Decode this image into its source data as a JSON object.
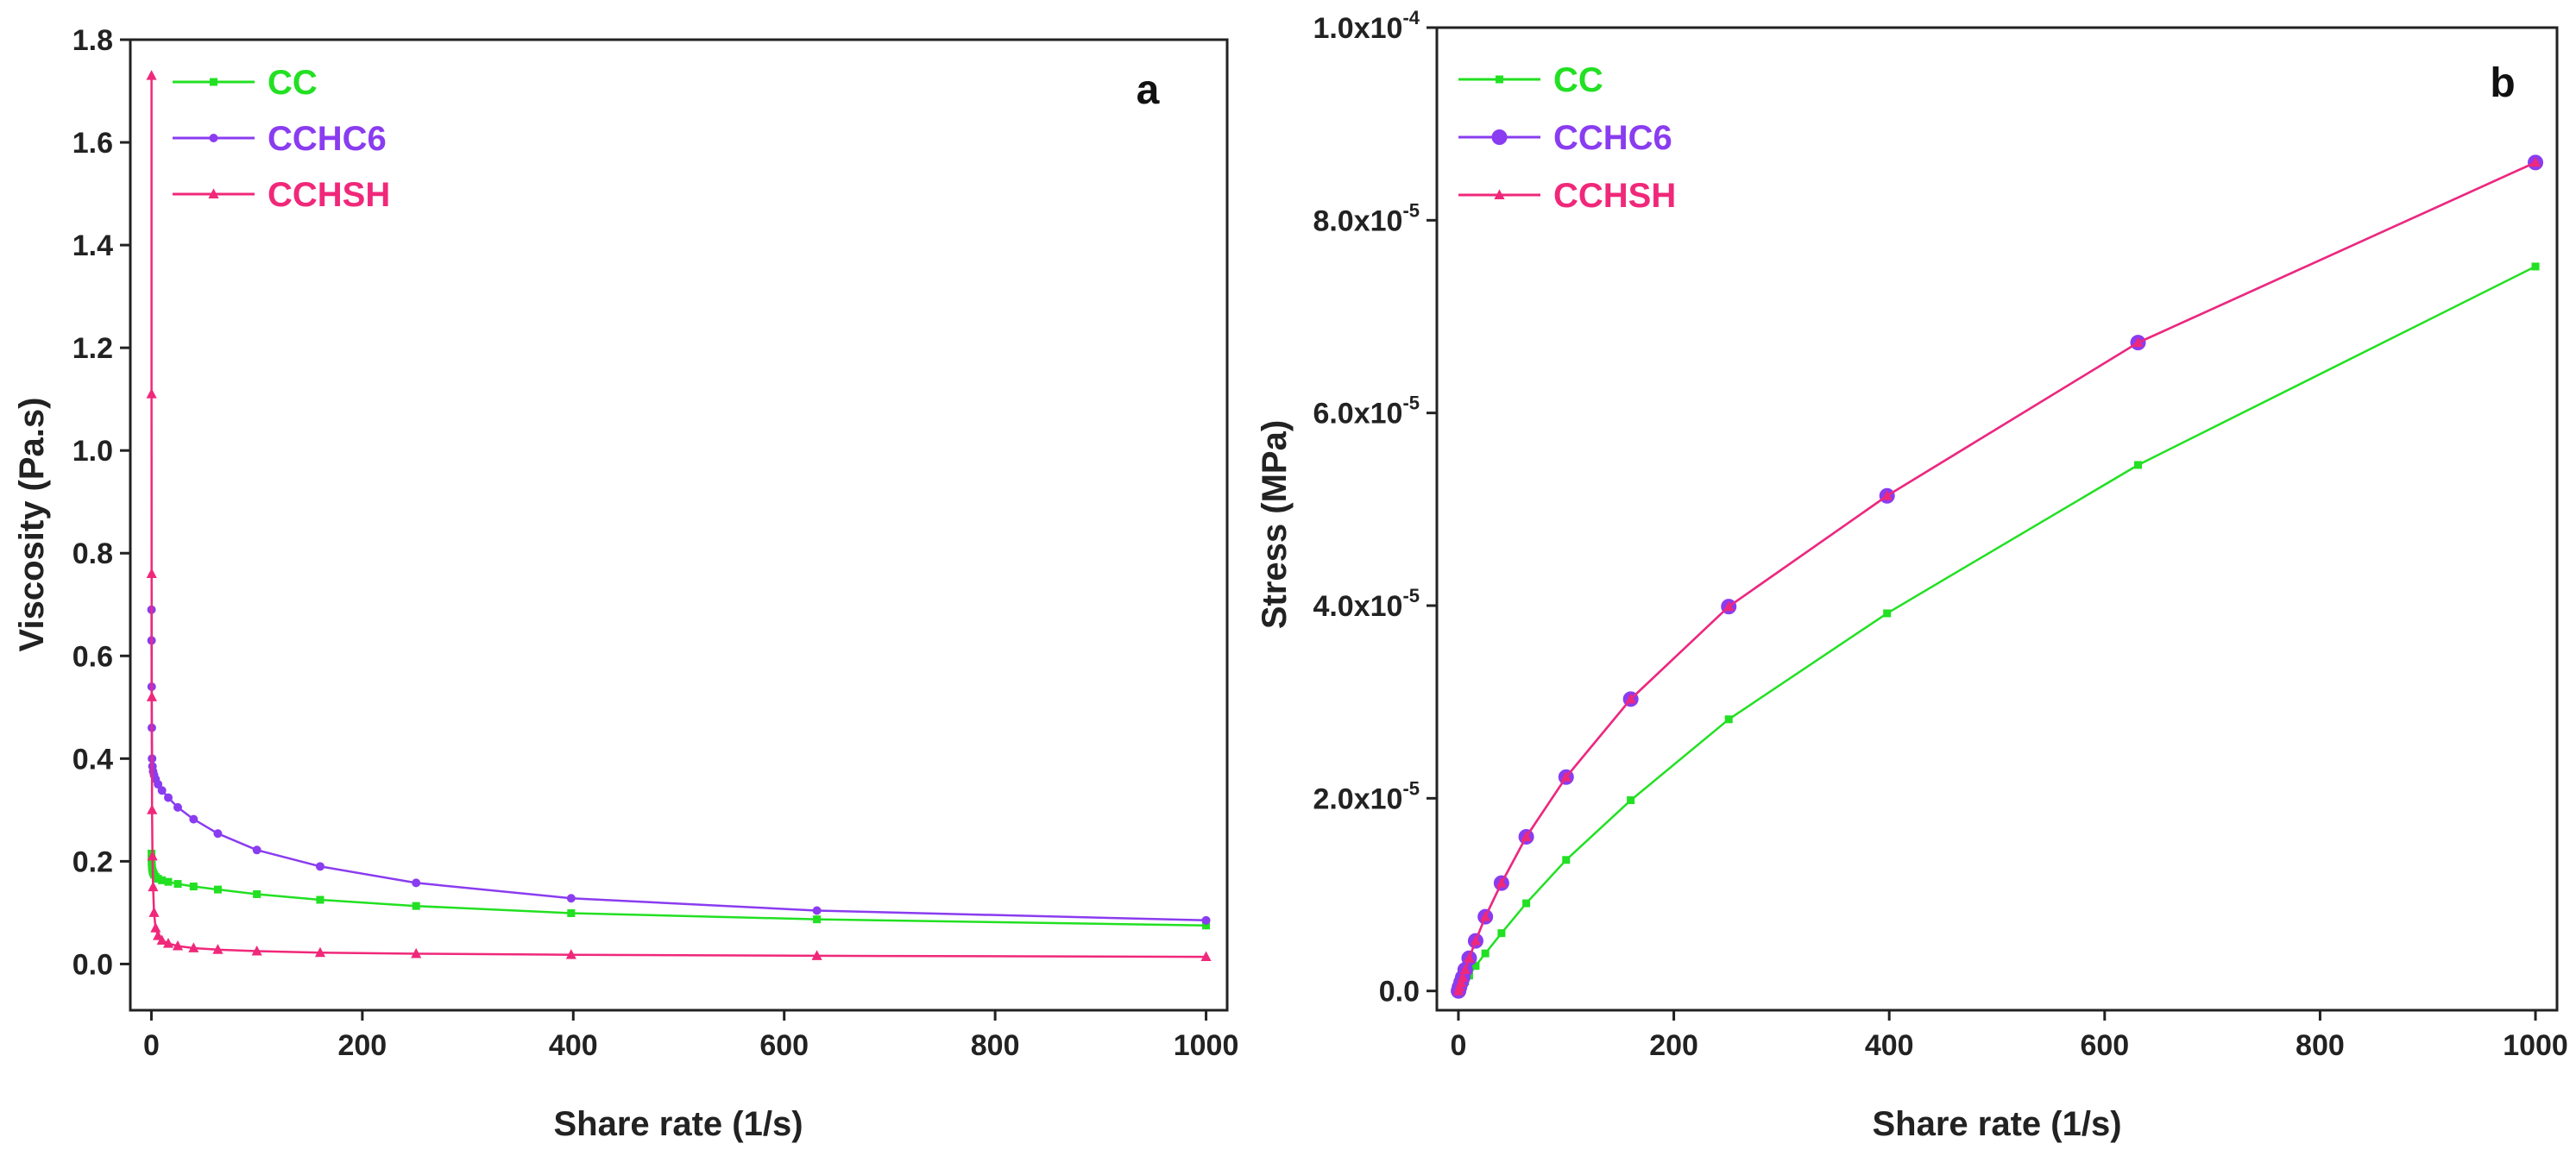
{
  "chart_data": [
    {
      "type": "line",
      "panel_label": "a",
      "title": "",
      "xlabel": "Share rate (1/s)",
      "ylabel": "Viscosity (Pa.s)",
      "xlim": [
        -20,
        1020
      ],
      "ylim": [
        -0.09,
        1.8
      ],
      "xticks": [
        0,
        200,
        400,
        600,
        800,
        1000
      ],
      "xtick_labels": [
        "0",
        "200",
        "400",
        "600",
        "800",
        "1000"
      ],
      "yticks": [
        0,
        0.2,
        0.4,
        0.6,
        0.8,
        1.0,
        1.2,
        1.4,
        1.6,
        1.8
      ],
      "ytick_labels": [
        "0.0",
        "0.2",
        "0.4",
        "0.6",
        "0.8",
        "1.0",
        "1.2",
        "1.4",
        "1.6",
        "1.8"
      ],
      "legend": "top-left",
      "series": [
        {
          "name": "CC",
          "color": "#22e022",
          "marker": "square",
          "x": [
            0.1,
            0.16,
            0.25,
            0.4,
            0.63,
            1,
            1.6,
            2.5,
            4,
            6.3,
            10,
            16,
            25,
            40,
            63,
            100,
            160,
            251,
            398,
            631,
            1000
          ],
          "y": [
            0.215,
            0.205,
            0.198,
            0.192,
            0.187,
            0.182,
            0.178,
            0.174,
            0.17,
            0.166,
            0.163,
            0.16,
            0.156,
            0.151,
            0.145,
            0.136,
            0.125,
            0.113,
            0.099,
            0.087,
            0.075
          ]
        },
        {
          "name": "CCHC6",
          "color": "#8a3cf0",
          "marker": "circle",
          "x": [
            0.1,
            0.16,
            0.25,
            0.4,
            0.63,
            1,
            1.6,
            2.5,
            4,
            6.3,
            10,
            16,
            25,
            40,
            63,
            100,
            160,
            251,
            398,
            631,
            1000
          ],
          "y": [
            0.69,
            0.63,
            0.54,
            0.46,
            0.4,
            0.385,
            0.375,
            0.368,
            0.36,
            0.35,
            0.338,
            0.324,
            0.305,
            0.282,
            0.254,
            0.222,
            0.19,
            0.158,
            0.128,
            0.104,
            0.085
          ]
        },
        {
          "name": "CCHSH",
          "color": "#f0287a",
          "marker": "triangle",
          "x": [
            0.1,
            0.16,
            0.25,
            0.4,
            0.63,
            1,
            1.6,
            2.5,
            4,
            6.3,
            10,
            16,
            25,
            40,
            63,
            100,
            160,
            251,
            398,
            631,
            1000
          ],
          "y": [
            1.73,
            1.11,
            0.76,
            0.52,
            0.3,
            0.21,
            0.15,
            0.1,
            0.07,
            0.055,
            0.046,
            0.04,
            0.035,
            0.031,
            0.028,
            0.025,
            0.022,
            0.02,
            0.018,
            0.016,
            0.014
          ]
        }
      ]
    },
    {
      "type": "line",
      "panel_label": "b",
      "title": "",
      "xlabel": "Share rate (1/s)",
      "ylabel": "Stress (MPa)",
      "xlim": [
        -20,
        1020
      ],
      "ylim": [
        -2e-06,
        0.0001
      ],
      "xticks": [
        0,
        200,
        400,
        600,
        800,
        1000
      ],
      "xtick_labels": [
        "0",
        "200",
        "400",
        "600",
        "800",
        "1000"
      ],
      "yticks": [
        0,
        2e-05,
        4e-05,
        6e-05,
        8e-05,
        0.0001
      ],
      "ytick_labels": [
        {
          "mantissa": "0.0",
          "exp": ""
        },
        {
          "mantissa": "2.0x10",
          "exp": "-5"
        },
        {
          "mantissa": "4.0x10",
          "exp": "-5"
        },
        {
          "mantissa": "6.0x10",
          "exp": "-5"
        },
        {
          "mantissa": "8.0x10",
          "exp": "-5"
        },
        {
          "mantissa": "1.0x10",
          "exp": "-4"
        }
      ],
      "legend": "top-left",
      "series": [
        {
          "name": "CC",
          "color": "#22e022",
          "marker": "square",
          "x": [
            0.1,
            1,
            2.5,
            4,
            6.3,
            10,
            16,
            25,
            40,
            63,
            100,
            160,
            251,
            398,
            631,
            1000
          ],
          "y": [
            0,
            2e-07,
            4e-07,
            7e-07,
            1e-06,
            1.6e-06,
            2.6e-06,
            3.9e-06,
            6e-06,
            9.1e-06,
            1.36e-05,
            1.98e-05,
            2.82e-05,
            3.92e-05,
            5.46e-05,
            7.52e-05
          ]
        },
        {
          "name": "CCHC6",
          "color": "#8a3cf0",
          "marker": "circle",
          "x": [
            0.1,
            1,
            2.5,
            4,
            6.3,
            10,
            16,
            25,
            40,
            63,
            100,
            160,
            251,
            398,
            631,
            1000
          ],
          "y": [
            0,
            4e-07,
            9e-07,
            1.4e-06,
            2.2e-06,
            3.4e-06,
            5.2e-06,
            7.7e-06,
            1.12e-05,
            1.6e-05,
            2.22e-05,
            3.03e-05,
            3.99e-05,
            5.14e-05,
            6.73e-05,
            8.6e-05
          ]
        },
        {
          "name": "CCHSH",
          "color": "#f0287a",
          "marker": "triangle",
          "x": [
            0.1,
            1,
            2.5,
            4,
            6.3,
            10,
            16,
            25,
            40,
            63,
            100,
            160,
            251,
            398,
            631,
            1000
          ],
          "y": [
            0,
            4e-07,
            9e-07,
            1.4e-06,
            2.2e-06,
            3.4e-06,
            5.2e-06,
            7.7e-06,
            1.12e-05,
            1.6e-05,
            2.22e-05,
            3.03e-05,
            3.99e-05,
            5.14e-05,
            6.73e-05,
            8.6e-05
          ]
        }
      ]
    }
  ]
}
